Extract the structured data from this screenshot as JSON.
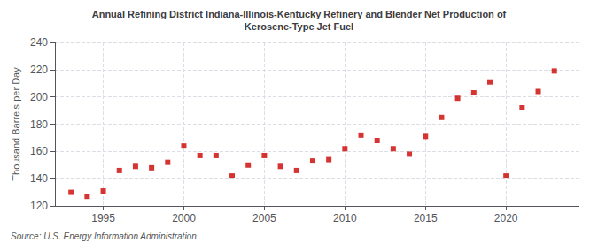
{
  "chart_data": {
    "type": "scatter",
    "title": "Annual Refining District Indiana-Illinois-Kentucky Refinery and Blender Net Production of\nKerosene-Type Jet Fuel",
    "ylabel": "Thousand Barrels per Day",
    "annotations": [
      "Source: U.S. Energy Information Administration"
    ],
    "x": [
      1993,
      1994,
      1995,
      1996,
      1997,
      1998,
      1999,
      2000,
      2001,
      2002,
      2003,
      2004,
      2005,
      2006,
      2007,
      2008,
      2009,
      2010,
      2011,
      2012,
      2013,
      2014,
      2015,
      2016,
      2017,
      2018,
      2019,
      2020,
      2021,
      2022,
      2023
    ],
    "values": [
      130,
      127,
      131,
      146,
      149,
      148,
      152,
      164,
      157,
      157,
      142,
      150,
      157,
      149,
      146,
      153,
      154,
      162,
      172,
      168,
      162,
      158,
      171,
      185,
      199,
      203,
      211,
      142,
      192,
      204,
      219
    ],
    "color": "#cc0000",
    "marker": "square",
    "xlim": [
      1992.0,
      2024.5
    ],
    "xticks": [
      1995,
      2000,
      2005,
      2010,
      2015,
      2020
    ],
    "ylim": [
      120,
      240
    ],
    "yticks": [
      120,
      140,
      160,
      180,
      200,
      220,
      240
    ],
    "grid": true
  }
}
